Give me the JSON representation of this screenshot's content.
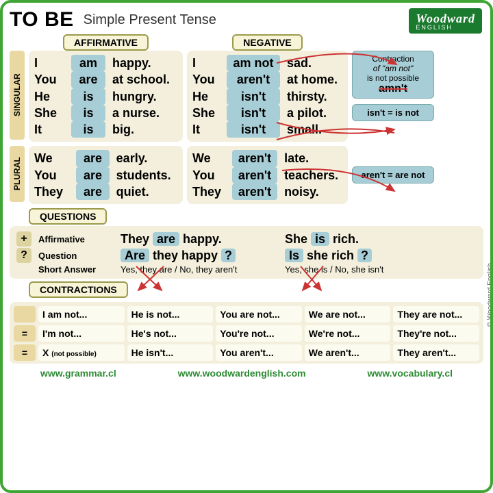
{
  "header": {
    "title": "TO BE",
    "subtitle": "Simple Present Tense"
  },
  "logo": {
    "line1": "Woodward",
    "line2": "ENGLISH"
  },
  "labels": {
    "affirmative": "AFFIRMATIVE",
    "negative": "NEGATIVE",
    "singular": "SINGULAR",
    "plural": "PLURAL",
    "questions": "QUESTIONS",
    "contractions": "CONTRACTIONS"
  },
  "aff_sing": {
    "p": [
      "I",
      "You",
      "He",
      "She",
      "It"
    ],
    "v": [
      "am",
      "are",
      "is",
      "is",
      "is"
    ],
    "c": [
      "happy.",
      "at school.",
      "hungry.",
      "a nurse.",
      "big."
    ]
  },
  "neg_sing": {
    "p": [
      "I",
      "You",
      "He",
      "She",
      "It"
    ],
    "v": [
      "am not",
      "aren't",
      "isn't",
      "isn't",
      "isn't"
    ],
    "c": [
      "sad.",
      "at home.",
      "thirsty.",
      "a pilot.",
      "small."
    ]
  },
  "aff_pl": {
    "p": [
      "We",
      "You",
      "They"
    ],
    "v": [
      "are",
      "are",
      "are"
    ],
    "c": [
      "early.",
      "students.",
      "quiet."
    ]
  },
  "neg_pl": {
    "p": [
      "We",
      "You",
      "They"
    ],
    "v": [
      "aren't",
      "aren't",
      "aren't"
    ],
    "c": [
      "late.",
      "teachers.",
      "noisy."
    ]
  },
  "callouts": {
    "c1_l1": "Contraction",
    "c1_l2": "of \"am not\"",
    "c1_l3": "is not possible",
    "c1_l4": "amn't",
    "c2": "isn't = is not",
    "c3": "aren't = are not"
  },
  "q": {
    "aff_lab": "Affirmative",
    "q_lab": "Question",
    "sa_lab": "Short Answer",
    "s1_aff_pre": "They ",
    "s1_aff_v": "are",
    "s1_aff_post": " happy.",
    "s1_q_v": "Are",
    "s1_q_post": " they happy ",
    "s1_sa": "Yes, they are / No, they aren't",
    "s2_aff_pre": "She ",
    "s2_aff_v": "is",
    "s2_aff_post": " rich.",
    "s2_q_v": "Is",
    "s2_q_post": " she rich ",
    "s2_sa": "Yes, she is / No, she isn't",
    "qm": "?"
  },
  "contr": {
    "np": "(not possible)",
    "cols": [
      "I am not...",
      "He is not...",
      "You are not...",
      "We are not...",
      "They are not..."
    ],
    "r2": [
      "I'm not...",
      "He's not...",
      "You're not...",
      "We're not...",
      "They're not..."
    ],
    "r3": [
      "",
      "He isn't...",
      "You aren't...",
      "We aren't...",
      "They aren't..."
    ]
  },
  "footer": {
    "u1": "www.grammar.cl",
    "u2": "www.woodwardenglish.com",
    "u3": "www.vocabulary.cl"
  },
  "copyright": "© Woodward English"
}
